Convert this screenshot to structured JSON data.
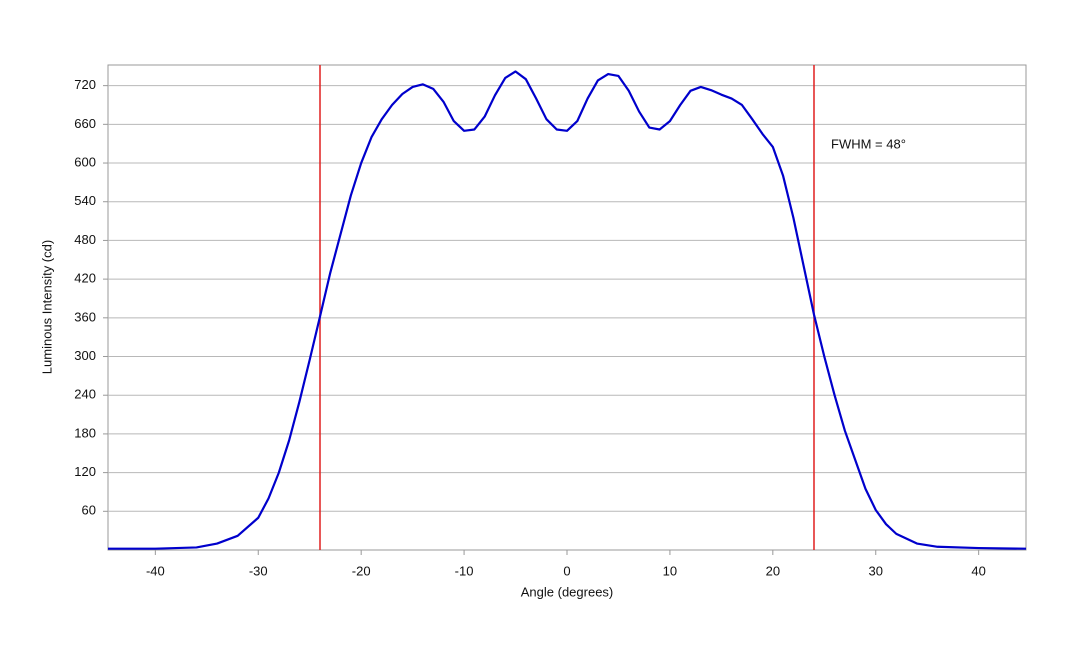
{
  "chart_data": {
    "type": "line",
    "x_label": "Angle (degrees)",
    "y_label": "Luminous Intensity (cd)",
    "x": [
      -44.6,
      -40,
      -36,
      -34,
      -32,
      -30,
      -29,
      -28,
      -27,
      -26,
      -25,
      -24,
      -23,
      -22,
      -21,
      -20,
      -19,
      -18,
      -17,
      -16,
      -15,
      -14,
      -13,
      -12,
      -11,
      -10,
      -9,
      -8,
      -7,
      -6,
      -5,
      -4,
      -3,
      -2,
      -1,
      0,
      1,
      2,
      3,
      4,
      5,
      6,
      7,
      8,
      9,
      10,
      11,
      12,
      13,
      14,
      15,
      16,
      17,
      18,
      19,
      20,
      21,
      22,
      23,
      24,
      25,
      26,
      27,
      28,
      29,
      30,
      31,
      32,
      34,
      36,
      40,
      44.6
    ],
    "series": [
      {
        "name": "Luminous Intensity",
        "color": "#0000cc",
        "values": [
          2,
          2,
          4,
          10,
          22,
          50,
          80,
          120,
          170,
          230,
          295,
          362,
          430,
          490,
          550,
          600,
          640,
          668,
          690,
          707,
          718,
          722,
          715,
          695,
          665,
          650,
          652,
          672,
          705,
          732,
          742,
          730,
          700,
          668,
          652,
          650,
          665,
          700,
          728,
          738,
          735,
          712,
          680,
          655,
          652,
          665,
          690,
          712,
          718,
          713,
          706,
          700,
          690,
          668,
          645,
          625,
          580,
          515,
          440,
          365,
          300,
          240,
          185,
          140,
          95,
          62,
          40,
          25,
          10,
          5,
          3,
          2
        ]
      }
    ],
    "vlines": [
      -24,
      24
    ],
    "vline_color": "#e02020",
    "annotation": "FWHM = 48°",
    "xlim": [
      -44.6,
      44.6
    ],
    "xticks": [
      -40,
      -30,
      -20,
      -10,
      0,
      10,
      20,
      30,
      40
    ],
    "ylim": [
      0,
      752
    ],
    "yticks": [
      60,
      120,
      180,
      240,
      300,
      360,
      420,
      480,
      540,
      600,
      660,
      720
    ],
    "grid": true
  }
}
